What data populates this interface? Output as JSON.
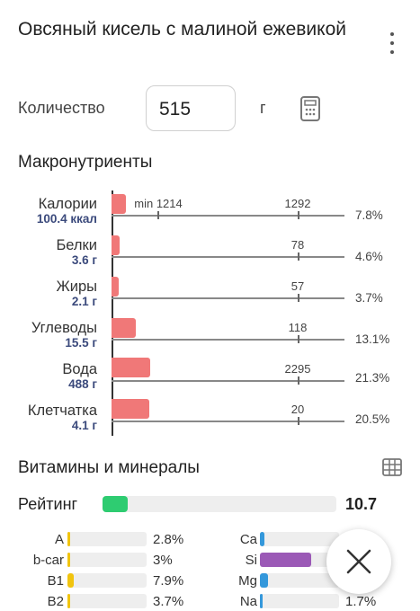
{
  "header": {
    "title": "Овсяный кисель с малиной ежевикой"
  },
  "quantity": {
    "label": "Количество",
    "value": "515",
    "unit": "г"
  },
  "macros": {
    "title": "Макронутриенты",
    "items": [
      {
        "name": "Калории",
        "value": "100.4 ккал",
        "percent": "7.8%",
        "pct_num": 7.8,
        "ref_label": "1292",
        "min_label": "min 1214"
      },
      {
        "name": "Белки",
        "value": "3.6 г",
        "percent": "4.6%",
        "pct_num": 4.6,
        "ref_label": "78"
      },
      {
        "name": "Жиры",
        "value": "2.1 г",
        "percent": "3.7%",
        "pct_num": 3.7,
        "ref_label": "57"
      },
      {
        "name": "Углеводы",
        "value": "15.5 г",
        "percent": "13.1%",
        "pct_num": 13.1,
        "ref_label": "118"
      },
      {
        "name": "Вода",
        "value": "488 г",
        "percent": "21.3%",
        "pct_num": 21.3,
        "ref_label": "2295"
      },
      {
        "name": "Клетчатка",
        "value": "4.1 г",
        "percent": "20.5%",
        "pct_num": 20.5,
        "ref_label": "20"
      }
    ]
  },
  "vitamins": {
    "title": "Витамины и минералы",
    "rating": {
      "label": "Рейтинг",
      "value": "10.7",
      "fill_fraction": 0.107,
      "color": "#2ecc71"
    },
    "left": [
      {
        "name": "A",
        "percent": "2.8%",
        "fill_fraction": 0.028,
        "color": "#f1c40f"
      },
      {
        "name": "b-car",
        "percent": "3%",
        "fill_fraction": 0.03,
        "color": "#f1c40f"
      },
      {
        "name": "B1",
        "percent": "7.9%",
        "fill_fraction": 0.079,
        "color": "#f1c40f"
      },
      {
        "name": "B2",
        "percent": "3.7%",
        "fill_fraction": 0.037,
        "color": "#f1c40f"
      }
    ],
    "right": [
      {
        "name": "Ca",
        "percent": "",
        "fill_fraction": 0.06,
        "color": "#3498db"
      },
      {
        "name": "Si",
        "percent": "",
        "fill_fraction": 0.65,
        "color": "#9b59b6"
      },
      {
        "name": "Mg",
        "percent": "",
        "fill_fraction": 0.1,
        "color": "#3498db"
      },
      {
        "name": "Na",
        "percent": "1.7%",
        "fill_fraction": 0.017,
        "color": "#3498db"
      }
    ]
  },
  "colors": {
    "macro_bar": "#f07878",
    "name_value": "#3b4a7c"
  }
}
